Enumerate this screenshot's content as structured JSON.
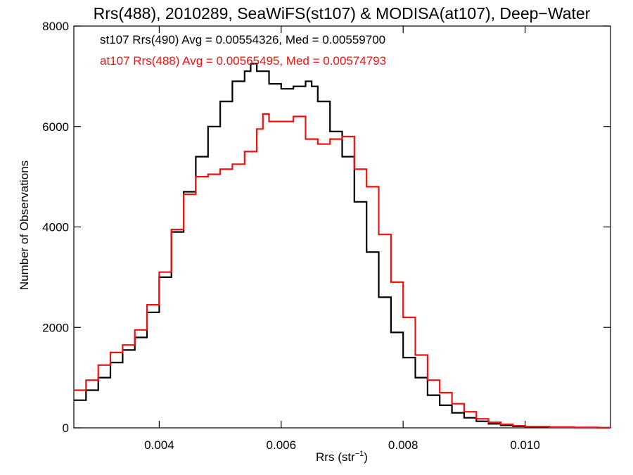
{
  "chart_data": {
    "type": "line",
    "step": true,
    "title": "Rrs(488), 2010289, SeaWiFS(st107) & MODISA(at107), Deep−Water",
    "xlabel": "Rrs (str",
    "xlabel_sup": "−1",
    "xlabel_suffix": ")",
    "ylabel": "Number of Observations",
    "xlim": [
      0.0026,
      0.0114
    ],
    "ylim": [
      0,
      8000
    ],
    "x_ticks": [
      0.004,
      0.006,
      0.008,
      0.01
    ],
    "x_tick_labels": [
      "0.004",
      "0.006",
      "0.008",
      "0.010"
    ],
    "y_ticks": [
      0,
      2000,
      4000,
      6000,
      8000
    ],
    "y_tick_labels": [
      "0",
      "2000",
      "4000",
      "6000",
      "8000"
    ],
    "grid": false,
    "legend": "top-left",
    "series": [
      {
        "name": "st107 Rrs(490) Avg = 0.00554326, Med = 0.00559700",
        "color": "#000000",
        "x": [
          0.0026,
          0.0028,
          0.003,
          0.0032,
          0.0034,
          0.0036,
          0.0038,
          0.004,
          0.0042,
          0.0044,
          0.0046,
          0.0048,
          0.005,
          0.0052,
          0.0054,
          0.0055,
          0.0056,
          0.0058,
          0.006,
          0.0062,
          0.0064,
          0.0065,
          0.0066,
          0.0068,
          0.007,
          0.0072,
          0.0074,
          0.0076,
          0.0078,
          0.008,
          0.0082,
          0.0084,
          0.0086,
          0.0088,
          0.009,
          0.0092,
          0.0094,
          0.0096,
          0.0098,
          0.01,
          0.0104,
          0.0108,
          0.0112,
          0.0114
        ],
        "y": [
          550,
          750,
          1000,
          1300,
          1550,
          1800,
          2300,
          3000,
          3900,
          4700,
          5400,
          6000,
          6500,
          6900,
          7100,
          7250,
          7100,
          6850,
          6750,
          6800,
          6900,
          6800,
          6500,
          5900,
          5400,
          4500,
          3500,
          2600,
          1900,
          1400,
          1000,
          650,
          450,
          300,
          200,
          130,
          80,
          50,
          30,
          20,
          10,
          5,
          2,
          0
        ]
      },
      {
        "name": "at107 Rrs(488) Avg = 0.00565495, Med = 0.00574793",
        "color": "#ee1111",
        "x": [
          0.0026,
          0.0028,
          0.003,
          0.0032,
          0.0034,
          0.0036,
          0.0038,
          0.004,
          0.0042,
          0.0044,
          0.0046,
          0.0048,
          0.005,
          0.0052,
          0.0054,
          0.0056,
          0.0057,
          0.0058,
          0.006,
          0.0062,
          0.0064,
          0.0066,
          0.0068,
          0.007,
          0.0072,
          0.0074,
          0.0076,
          0.0078,
          0.008,
          0.0082,
          0.0084,
          0.0086,
          0.0088,
          0.009,
          0.0092,
          0.0094,
          0.0096,
          0.0098,
          0.01,
          0.0104,
          0.0108,
          0.0112,
          0.0114
        ],
        "y": [
          750,
          950,
          1250,
          1500,
          1650,
          1950,
          2450,
          3100,
          3950,
          4650,
          5000,
          5050,
          5150,
          5250,
          5500,
          5950,
          6250,
          6100,
          6100,
          6200,
          5750,
          5650,
          5750,
          5800,
          5150,
          4800,
          3850,
          2900,
          2200,
          1450,
          950,
          700,
          480,
          320,
          180,
          110,
          70,
          40,
          25,
          15,
          8,
          3,
          0
        ]
      }
    ]
  }
}
